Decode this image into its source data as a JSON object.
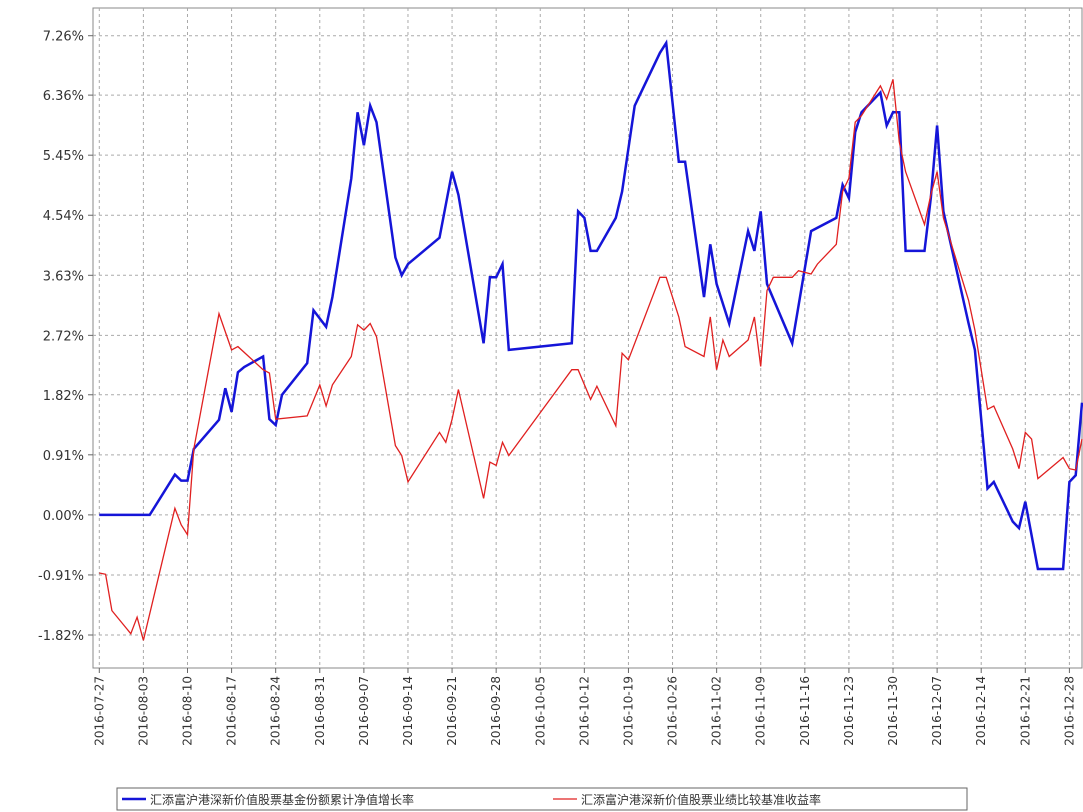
{
  "chart_data": {
    "type": "line",
    "xlim": [
      "2016-07-26",
      "2016-12-30"
    ],
    "xticks": [
      "2016-07-27",
      "2016-08-03",
      "2016-08-10",
      "2016-08-17",
      "2016-08-24",
      "2016-08-31",
      "2016-09-07",
      "2016-09-14",
      "2016-09-21",
      "2016-09-28",
      "2016-10-05",
      "2016-10-12",
      "2016-10-19",
      "2016-10-26",
      "2016-11-02",
      "2016-11-09",
      "2016-11-16",
      "2016-11-23",
      "2016-11-30",
      "2016-12-07",
      "2016-12-14",
      "2016-12-21",
      "2016-12-28"
    ],
    "ylim": [
      -2.32,
      7.68
    ],
    "yticks": [
      {
        "value": 7.26,
        "label": "7.26%"
      },
      {
        "value": 6.36,
        "label": "6.36%"
      },
      {
        "value": 5.45,
        "label": "5.45%"
      },
      {
        "value": 4.54,
        "label": "4.54%"
      },
      {
        "value": 3.63,
        "label": "3.63%"
      },
      {
        "value": 2.72,
        "label": "2.72%"
      },
      {
        "value": 1.82,
        "label": "1.82%"
      },
      {
        "value": 0.91,
        "label": "0.91%"
      },
      {
        "value": 0,
        "label": "0.00%"
      },
      {
        "value": -0.91,
        "label": "-0.91%"
      },
      {
        "value": -1.82,
        "label": "-1.82%"
      }
    ],
    "grid": true,
    "series": [
      {
        "name": "汇添富沪港深新价值股票基金份额累计净值增长率",
        "color": "#1515d8",
        "x": [
          "2016-07-27",
          "2016-08-04",
          "2016-08-08",
          "2016-08-09",
          "2016-08-10",
          "2016-08-11",
          "2016-08-15",
          "2016-08-16",
          "2016-08-17",
          "2016-08-18",
          "2016-08-19",
          "2016-08-22",
          "2016-08-23",
          "2016-08-24",
          "2016-08-25",
          "2016-08-29",
          "2016-08-30",
          "2016-09-01",
          "2016-09-02",
          "2016-09-05",
          "2016-09-06",
          "2016-09-07",
          "2016-09-08",
          "2016-09-09",
          "2016-09-12",
          "2016-09-13",
          "2016-09-14",
          "2016-09-19",
          "2016-09-21",
          "2016-09-22",
          "2016-09-26",
          "2016-09-27",
          "2016-09-28",
          "2016-09-29",
          "2016-09-30",
          "2016-10-10",
          "2016-10-11",
          "2016-10-12",
          "2016-10-13",
          "2016-10-14",
          "2016-10-17",
          "2016-10-18",
          "2016-10-20",
          "2016-10-24",
          "2016-10-25",
          "2016-10-27",
          "2016-10-28",
          "2016-10-31",
          "2016-11-01",
          "2016-11-02",
          "2016-11-04",
          "2016-11-07",
          "2016-11-08",
          "2016-11-09",
          "2016-11-10",
          "2016-11-14",
          "2016-11-17",
          "2016-11-21",
          "2016-11-22",
          "2016-11-23",
          "2016-11-24",
          "2016-11-25",
          "2016-11-28",
          "2016-11-29",
          "2016-11-30",
          "2016-12-01",
          "2016-12-02",
          "2016-12-05",
          "2016-12-06",
          "2016-12-07",
          "2016-12-08",
          "2016-12-12",
          "2016-12-13",
          "2016-12-15",
          "2016-12-16",
          "2016-12-19",
          "2016-12-20",
          "2016-12-21",
          "2016-12-23",
          "2016-12-27",
          "2016-12-28",
          "2016-12-29",
          "2016-12-30"
        ],
        "values": [
          0,
          0,
          0.61,
          0.52,
          0.52,
          1.0,
          1.44,
          1.92,
          1.56,
          2.16,
          2.24,
          2.4,
          1.45,
          1.36,
          1.82,
          2.3,
          3.1,
          2.85,
          3.3,
          5.1,
          6.1,
          5.6,
          6.2,
          5.95,
          3.9,
          3.63,
          3.8,
          4.2,
          5.2,
          4.85,
          2.6,
          3.6,
          3.6,
          3.8,
          2.5,
          2.6,
          4.6,
          4.5,
          4.0,
          4.0,
          4.5,
          4.9,
          6.2,
          7.0,
          7.15,
          5.35,
          5.35,
          3.3,
          4.1,
          3.5,
          2.9,
          4.3,
          4.0,
          4.6,
          3.5,
          2.6,
          4.3,
          4.5,
          5.0,
          4.8,
          5.8,
          6.1,
          6.4,
          5.9,
          6.1,
          6.1,
          4.0,
          4.0,
          4.8,
          5.9,
          4.6,
          2.9,
          2.5,
          0.4,
          0.5,
          -0.1,
          -0.2,
          0.2,
          -0.82,
          -0.82,
          0.5,
          0.6,
          1.7
        ]
      },
      {
        "name": "汇添富沪港深新价值股票业绩比较基准收益率",
        "color": "#e02020",
        "x": [
          "2016-07-27",
          "2016-07-28",
          "2016-07-29",
          "2016-08-01",
          "2016-08-02",
          "2016-08-03",
          "2016-08-08",
          "2016-08-09",
          "2016-08-10",
          "2016-08-11",
          "2016-08-15",
          "2016-08-17",
          "2016-08-18",
          "2016-08-22",
          "2016-08-23",
          "2016-08-24",
          "2016-08-29",
          "2016-08-31",
          "2016-09-01",
          "2016-09-02",
          "2016-09-05",
          "2016-09-06",
          "2016-09-07",
          "2016-09-08",
          "2016-09-09",
          "2016-09-12",
          "2016-09-13",
          "2016-09-14",
          "2016-09-19",
          "2016-09-20",
          "2016-09-21",
          "2016-09-22",
          "2016-09-26",
          "2016-09-27",
          "2016-09-28",
          "2016-09-29",
          "2016-09-30",
          "2016-10-10",
          "2016-10-11",
          "2016-10-13",
          "2016-10-14",
          "2016-10-17",
          "2016-10-18",
          "2016-10-19",
          "2016-10-24",
          "2016-10-25",
          "2016-10-27",
          "2016-10-28",
          "2016-10-31",
          "2016-11-01",
          "2016-11-02",
          "2016-11-03",
          "2016-11-04",
          "2016-11-07",
          "2016-11-08",
          "2016-11-09",
          "2016-11-10",
          "2016-11-11",
          "2016-11-14",
          "2016-11-15",
          "2016-11-17",
          "2016-11-18",
          "2016-11-21",
          "2016-11-22",
          "2016-11-23",
          "2016-11-24",
          "2016-11-25",
          "2016-11-28",
          "2016-11-29",
          "2016-11-30",
          "2016-12-01",
          "2016-12-02",
          "2016-12-05",
          "2016-12-06",
          "2016-12-07",
          "2016-12-08",
          "2016-12-12",
          "2016-12-13",
          "2016-12-15",
          "2016-12-16",
          "2016-12-19",
          "2016-12-20",
          "2016-12-21",
          "2016-12-22",
          "2016-12-23",
          "2016-12-27",
          "2016-12-28",
          "2016-12-29",
          "2016-12-30"
        ],
        "values": [
          -0.88,
          -0.9,
          -1.45,
          -1.8,
          -1.55,
          -1.9,
          0.1,
          -0.15,
          -0.3,
          1.0,
          3.05,
          2.5,
          2.55,
          2.2,
          2.15,
          1.45,
          1.5,
          1.97,
          1.65,
          1.97,
          2.4,
          2.88,
          2.8,
          2.9,
          2.7,
          1.05,
          0.9,
          0.5,
          1.25,
          1.1,
          1.45,
          1.9,
          0.25,
          0.8,
          0.75,
          1.1,
          0.9,
          2.2,
          2.2,
          1.75,
          1.95,
          1.35,
          2.45,
          2.35,
          3.6,
          3.6,
          3.0,
          2.55,
          2.4,
          3.0,
          2.2,
          2.65,
          2.4,
          2.65,
          3.0,
          2.25,
          3.4,
          3.6,
          3.6,
          3.7,
          3.65,
          3.8,
          4.1,
          4.9,
          5.1,
          5.95,
          6.05,
          6.5,
          6.3,
          6.6,
          5.65,
          5.2,
          4.4,
          4.85,
          5.2,
          4.5,
          3.25,
          2.8,
          1.6,
          1.65,
          1.0,
          0.7,
          1.25,
          1.15,
          0.55,
          0.87,
          0.7,
          0.68,
          1.15
        ]
      }
    ]
  }
}
